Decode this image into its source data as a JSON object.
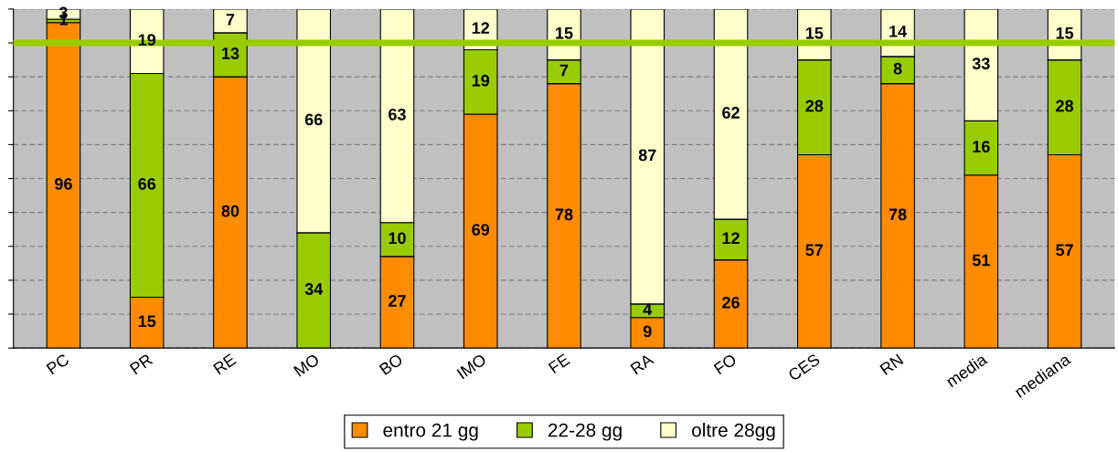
{
  "chart_data": {
    "type": "bar",
    "stacked": true,
    "data_labels": true,
    "categories": [
      "PC",
      "PR",
      "RE",
      "MO",
      "BO",
      "IMO",
      "FE",
      "RA",
      "FO",
      "CES",
      "RN",
      "media",
      "mediana"
    ],
    "series": [
      {
        "name": "entro 21 gg",
        "color": "#ff8c00",
        "values": [
          96,
          15,
          80,
          null,
          27,
          69,
          78,
          9,
          26,
          57,
          78,
          51,
          57
        ]
      },
      {
        "name": "22-28 gg",
        "color": "#99cc00",
        "values": [
          1,
          66,
          13,
          34,
          10,
          19,
          7,
          4,
          12,
          28,
          8,
          16,
          28
        ]
      },
      {
        "name": "oltre 28gg",
        "color": "#ffffcc",
        "values": [
          3,
          19,
          7,
          66,
          63,
          12,
          15,
          87,
          62,
          15,
          14,
          33,
          15
        ]
      }
    ],
    "ylim": [
      0,
      100
    ],
    "yticks": [
      {
        "value": 0,
        "label": null
      },
      {
        "value": 10,
        "label": null
      },
      {
        "value": 20,
        "label": null
      },
      {
        "value": 30,
        "label": null
      },
      {
        "value": 40,
        "label": null
      },
      {
        "value": 50,
        "label": null
      },
      {
        "value": 60,
        "label": null
      },
      {
        "value": 70,
        "label": null
      },
      {
        "value": 80,
        "label": null
      },
      {
        "value": 90,
        "label": null
      },
      {
        "value": 100,
        "label": null
      }
    ],
    "tick_labels": "x",
    "grid": "y",
    "legend": "bottom",
    "ref_lines": [
      {
        "axis": "y",
        "value": 90,
        "color": "#99cc00",
        "line_style": "solid"
      }
    ]
  }
}
